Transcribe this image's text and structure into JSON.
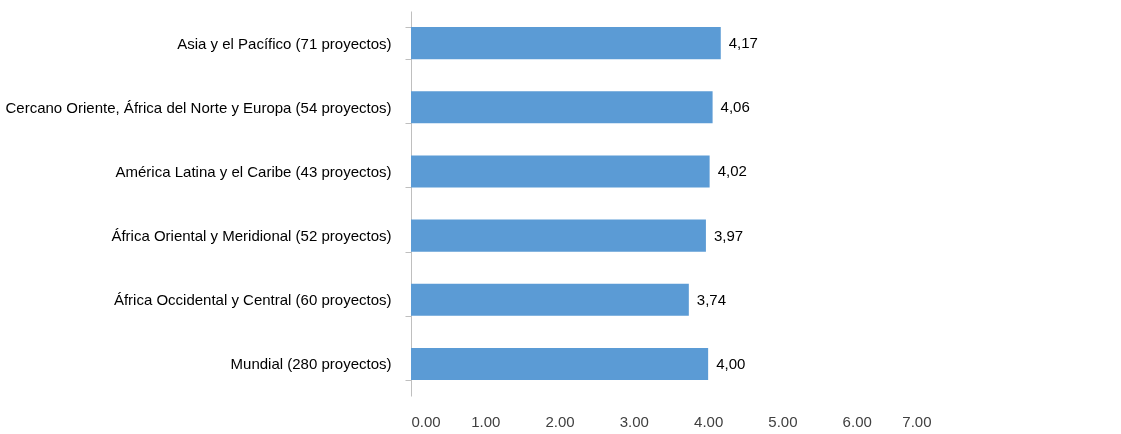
{
  "chart_data": {
    "type": "bar",
    "orientation": "horizontal",
    "categories": [
      "Asia y el Pacífico (71 proyectos)",
      "Cercano Oriente, África del Norte y Europa (54 proyectos)",
      "América Latina y el Caribe (43 proyectos)",
      "África Oriental y Meridional (52 proyectos)",
      "África Occidental y Central (60 proyectos)",
      "Mundial (280 proyectos)"
    ],
    "values": [
      4.17,
      4.06,
      4.02,
      3.97,
      3.74,
      4.0
    ],
    "value_labels": [
      "4,17",
      "4,06",
      "4,02",
      "3,97",
      "3,74",
      "4,00"
    ],
    "color": "#5b9bd5",
    "xlim": [
      0,
      7
    ],
    "xticks": [
      {
        "value": 0,
        "label": "0.00"
      },
      {
        "value": 1,
        "label": "1.00"
      },
      {
        "value": 2,
        "label": "2.00"
      },
      {
        "value": 3,
        "label": "3.00"
      },
      {
        "value": 4,
        "label": "4.00"
      },
      {
        "value": 5,
        "label": "5.00"
      },
      {
        "value": 6,
        "label": "6.00"
      },
      {
        "value": 7,
        "label": "7.00"
      }
    ],
    "grid": false
  }
}
